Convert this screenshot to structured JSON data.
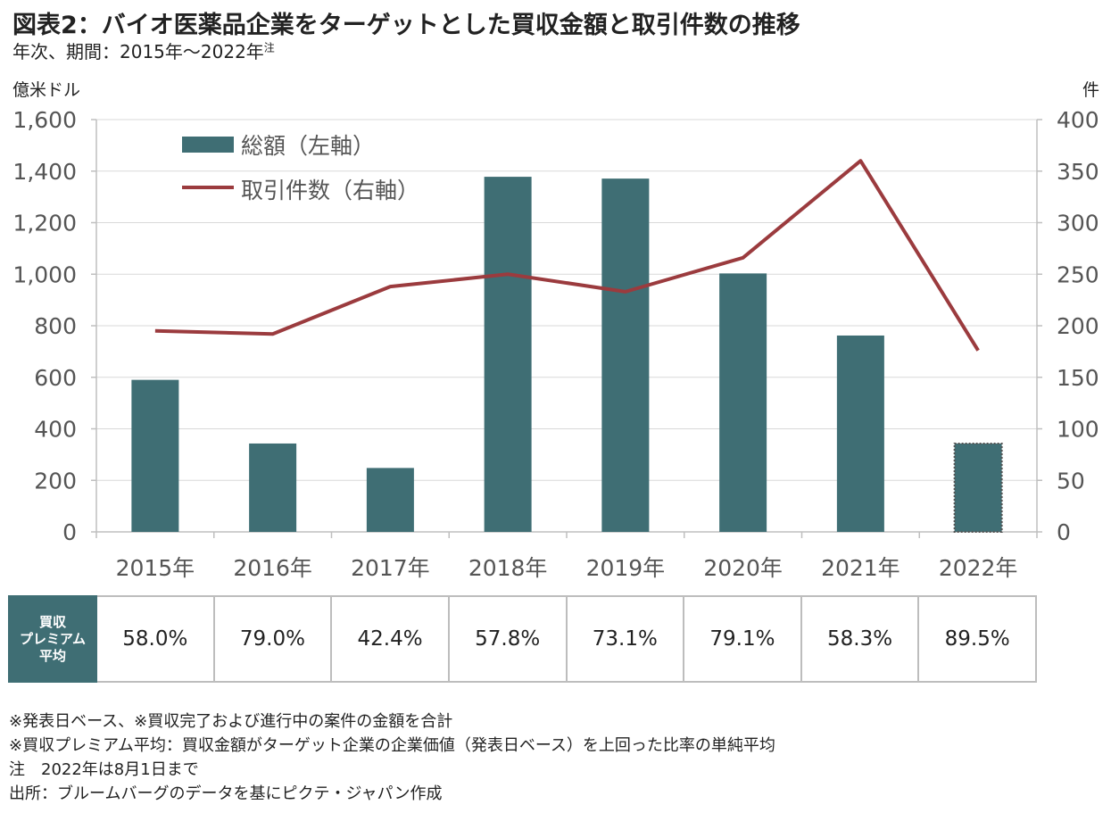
{
  "title": "図表2：バイオ医薬品企業をターゲットとした買収金額と取引件数の推移",
  "subtitle": "年次、期間：2015年～2022年",
  "subtitle_note_mark": "注",
  "chart_data": {
    "type": "bar+line",
    "categories": [
      "2015年",
      "2016年",
      "2017年",
      "2018年",
      "2019年",
      "2020年",
      "2021年",
      "2022年"
    ],
    "y_left_label": "億米ドル",
    "y_right_label": "件",
    "y_left": {
      "min": 0,
      "max": 1600,
      "ticks": [
        "0",
        "200",
        "400",
        "600",
        "800",
        "1,000",
        "1,200",
        "1,400",
        "1,600"
      ]
    },
    "y_right": {
      "min": 0,
      "max": 400,
      "ticks": [
        "0",
        "50",
        "100",
        "150",
        "200",
        "250",
        "300",
        "350",
        "400"
      ]
    },
    "grid": true,
    "legend_position": "top-left",
    "series": [
      {
        "name": "総額（左軸）",
        "type": "bar",
        "axis": "left",
        "color": "#3f6e74",
        "values": [
          590,
          343,
          248,
          1378,
          1371,
          1003,
          762,
          343
        ],
        "dashed_outline_last": true
      },
      {
        "name": "取引件数（右軸）",
        "type": "line",
        "axis": "right",
        "color": "#9b3b3e",
        "values": [
          195,
          192,
          238,
          250,
          233,
          266,
          360,
          176
        ]
      }
    ]
  },
  "premium_table": {
    "header": [
      "買収",
      "プレミアム",
      "平均"
    ],
    "values": [
      "58.0%",
      "79.0%",
      "42.4%",
      "57.8%",
      "73.1%",
      "79.1%",
      "58.3%",
      "89.5%"
    ]
  },
  "notes": [
    "※発表日ベース、※買収完了および進行中の案件の金額を合計",
    "※買収プレミアム平均：買収金額がターゲット企業の企業価値（発表日ベース）を上回った比率の単純平均",
    "注　2022年は8月1日まで",
    "出所：ブルームバーグのデータを基にピクテ・ジャパン作成"
  ]
}
